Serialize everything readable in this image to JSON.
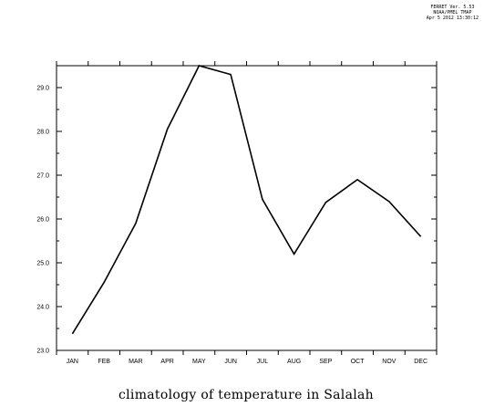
{
  "stamp": {
    "line1": "FERRET Ver. 5.53",
    "line2": "NOAA/PMEL TMAP",
    "line3": "Apr  5 2012 13:30:12"
  },
  "chart_data": {
    "type": "line",
    "title": "climatology of temperature in Salalah",
    "xlabel": "",
    "ylabel": "",
    "categories": [
      "JAN",
      "FEB",
      "MAR",
      "APR",
      "MAY",
      "JUN",
      "JUL",
      "AUG",
      "SEP",
      "OCT",
      "NOV",
      "DEC"
    ],
    "series": [
      {
        "values": [
          23.38,
          24.55,
          25.9,
          28.05,
          29.5,
          29.3,
          26.45,
          25.2,
          26.38,
          26.9,
          26.4,
          25.6
        ]
      }
    ],
    "ylim": [
      23.0,
      29.5
    ],
    "yticks": [
      "23.0",
      "24.0",
      "25.0",
      "26.0",
      "27.0",
      "28.0",
      "29.0"
    ],
    "grid": false,
    "line_color": "#000000"
  }
}
